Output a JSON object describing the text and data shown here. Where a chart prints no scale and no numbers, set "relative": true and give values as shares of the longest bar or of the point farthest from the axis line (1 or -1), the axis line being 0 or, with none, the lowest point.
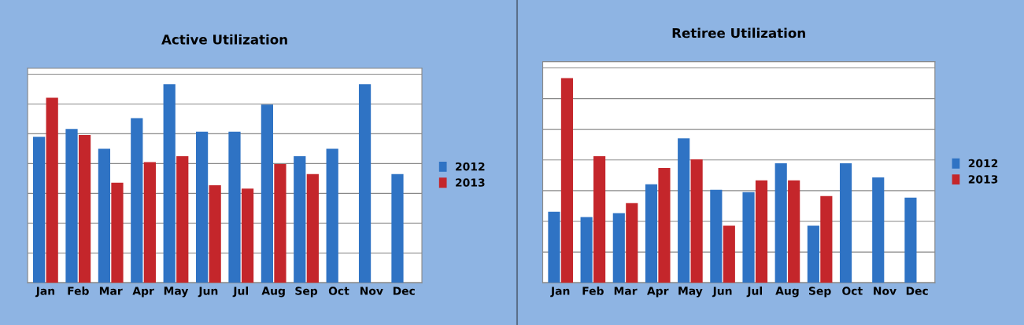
{
  "chart_data": [
    {
      "type": "bar",
      "title": "Active Utilization",
      "relative": true,
      "grid": "y",
      "legend": "right",
      "categories": [
        "Jan",
        "Feb",
        "Mar",
        "Apr",
        "May",
        "Jun",
        "Jul",
        "Aug",
        "Sep",
        "Oct",
        "Nov",
        "Dec"
      ],
      "series": [
        {
          "name": "2012",
          "color": "#2f73c4",
          "values": [
            0.735,
            0.774,
            0.675,
            0.829,
            1,
            0.761,
            0.761,
            0.897,
            0.637,
            0.675,
            1,
            0.547
          ]
        },
        {
          "name": "2013",
          "color": "#c4262b",
          "values": [
            0.932,
            0.744,
            0.504,
            0.607,
            0.637,
            0.491,
            0.474,
            0.598,
            0.547,
            null,
            null,
            null
          ]
        }
      ]
    },
    {
      "type": "bar",
      "title": "Retiree Utilization",
      "relative": true,
      "grid": "y",
      "legend": "right",
      "categories": [
        "Jan",
        "Feb",
        "Mar",
        "Apr",
        "May",
        "Jun",
        "Jul",
        "Aug",
        "Sep",
        "Oct",
        "Nov",
        "Dec"
      ],
      "series": [
        {
          "name": "2012",
          "color": "#2f73c4",
          "values": [
            0.347,
            0.321,
            0.34,
            0.481,
            0.706,
            0.454,
            0.443,
            0.584,
            0.279,
            0.584,
            0.515,
            0.416
          ]
        },
        {
          "name": "2013",
          "color": "#c4262b",
          "values": [
            1,
            0.618,
            0.389,
            0.561,
            0.603,
            0.279,
            0.5,
            0.5,
            0.424,
            null,
            null,
            null
          ]
        }
      ]
    }
  ]
}
